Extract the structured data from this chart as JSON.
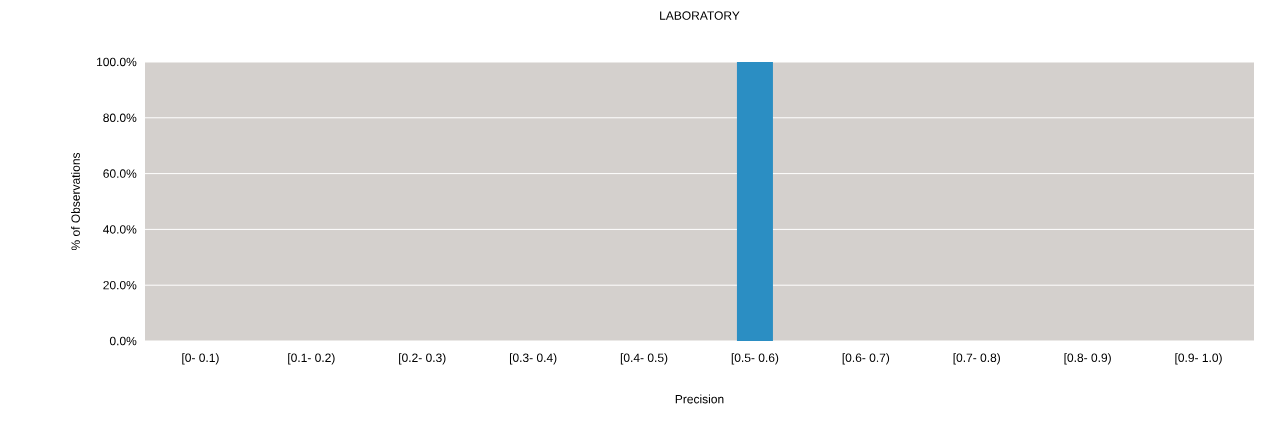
{
  "chart_data": {
    "type": "bar",
    "title": "LABORATORY",
    "xlabel": "Precision",
    "ylabel": "% of Observations",
    "categories": [
      "[0- 0.1)",
      "[0.1- 0.2)",
      "[0.2- 0.3)",
      "[0.3- 0.4)",
      "[0.4- 0.5)",
      "[0.5- 0.6)",
      "[0.6- 0.7)",
      "[0.7- 0.8)",
      "[0.8- 0.9)",
      "[0.9- 1.0)"
    ],
    "values": [
      0,
      0,
      0,
      0,
      0,
      100,
      0,
      0,
      0,
      0
    ],
    "color": "#2b8ec3",
    "ylim": [
      0,
      100
    ],
    "yticks": [
      {
        "value": 0,
        "label": "0.0%"
      },
      {
        "value": 20,
        "label": "20.0%"
      },
      {
        "value": 40,
        "label": "40.0%"
      },
      {
        "value": 60,
        "label": "60.0%"
      },
      {
        "value": 80,
        "label": "80.0%"
      },
      {
        "value": 100,
        "label": "100.0%"
      }
    ],
    "grid": "y"
  }
}
